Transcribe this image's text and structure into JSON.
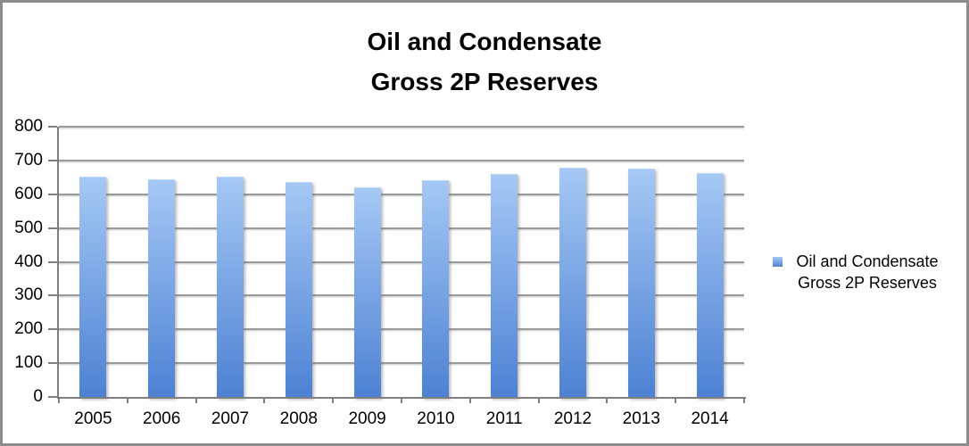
{
  "chart_data": {
    "type": "bar",
    "title": "Oil and Condensate Gross 2P Reserves",
    "title_lines": [
      "Oil and Condensate",
      "Gross 2P Reserves"
    ],
    "categories": [
      "2005",
      "2006",
      "2007",
      "2008",
      "2009",
      "2010",
      "2011",
      "2012",
      "2013",
      "2014"
    ],
    "series": [
      {
        "name": "Oil and Condensate Gross 2P Reserves",
        "values": [
          652,
          645,
          652,
          637,
          620,
          642,
          659,
          679,
          676,
          664
        ]
      }
    ],
    "ylim": [
      0,
      800
    ],
    "ytick_step": 100,
    "ytick_labels": [
      "0",
      "100",
      "200",
      "300",
      "400",
      "500",
      "600",
      "700",
      "800"
    ],
    "grid": true,
    "legend": {
      "position": "right",
      "lines": [
        "Oil and Condensate",
        "Gross 2P Reserves"
      ]
    },
    "colors": {
      "bar_gradient_top": "#a5c8f5",
      "bar_gradient_bottom": "#4c81d3",
      "gridline": "#9a9a9a",
      "axis": "#7f7f7f",
      "text": "#000000",
      "frame_border": "#8c8c8c",
      "background": "#ffffff"
    }
  }
}
